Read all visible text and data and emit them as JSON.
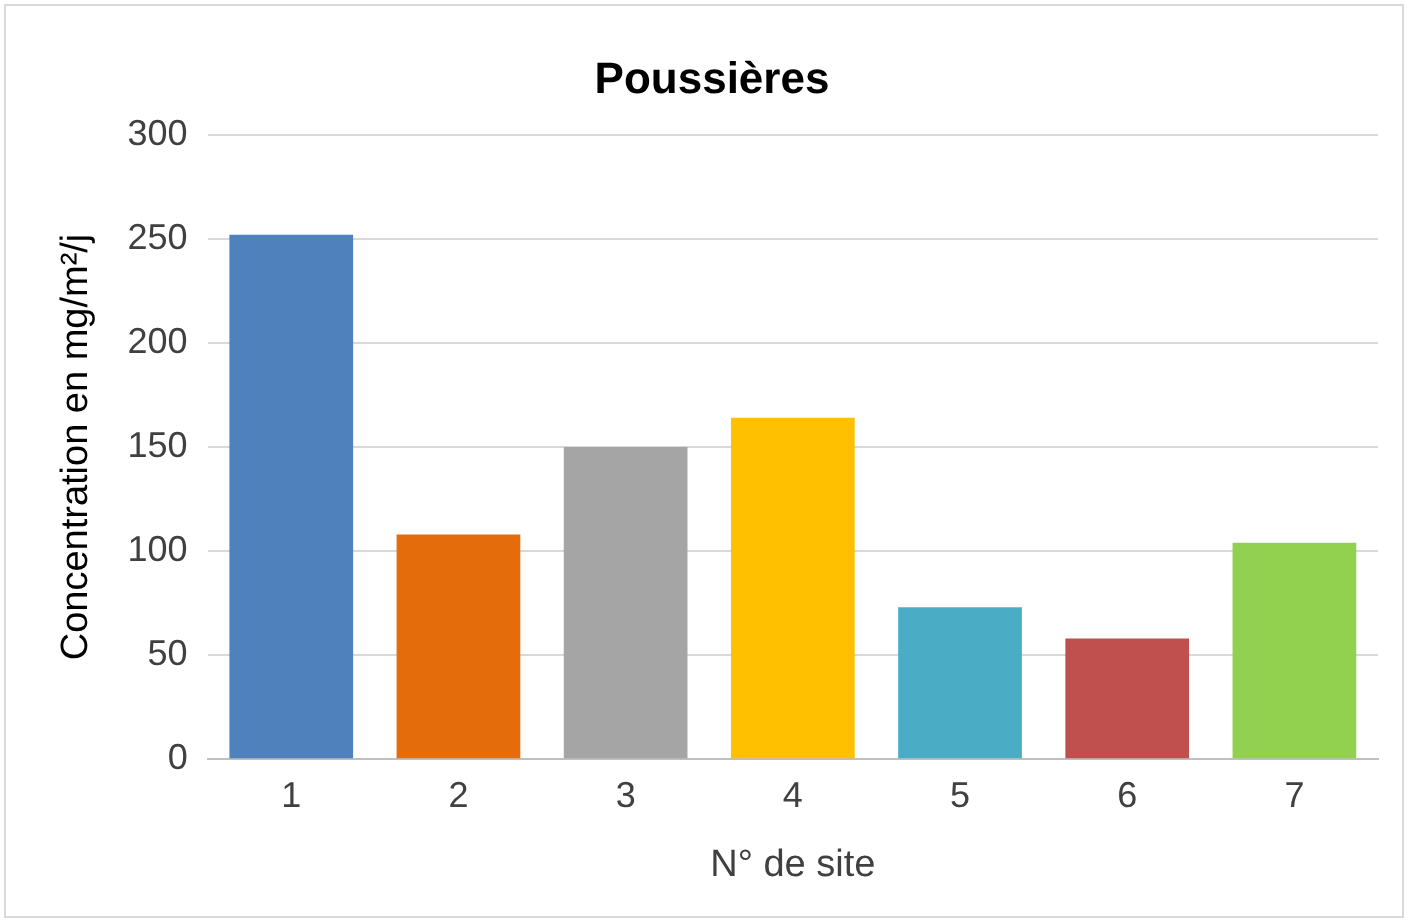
{
  "chart_data": {
    "type": "bar",
    "title": "Poussières",
    "xlabel": "N° de site",
    "ylabel": "Concentration en mg/m²/j",
    "categories": [
      "1",
      "2",
      "3",
      "4",
      "5",
      "6",
      "7"
    ],
    "values": [
      252,
      108,
      150,
      164,
      73,
      58,
      104
    ],
    "colors": [
      "#4f81bd",
      "#e46c0a",
      "#a5a5a5",
      "#ffc000",
      "#4bacc6",
      "#c0504d",
      "#92d050"
    ],
    "ylim": [
      0,
      300
    ],
    "yticks": [
      0,
      50,
      100,
      150,
      200,
      250,
      300
    ],
    "grid": "y",
    "legend": false
  }
}
